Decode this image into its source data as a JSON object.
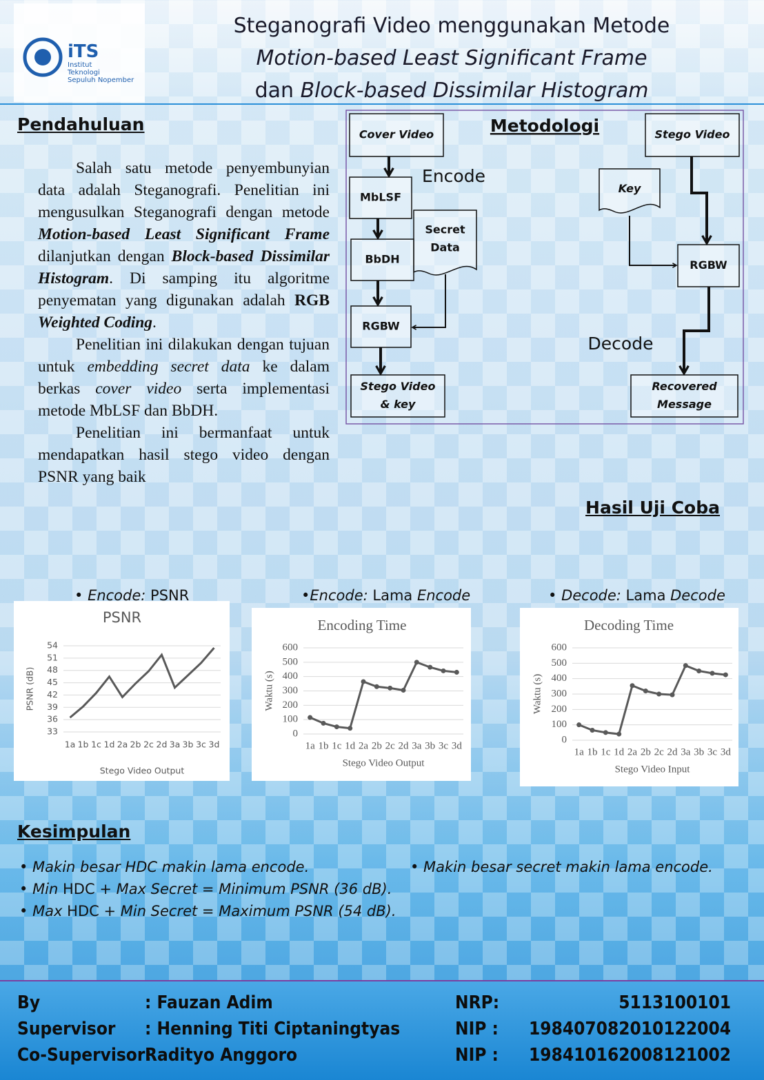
{
  "logo": {
    "mark": "iTS",
    "lines": [
      "Institut",
      "Teknologi",
      "Sepuluh Nopember"
    ]
  },
  "title": {
    "lines": [
      [
        {
          "text": "Steganografi Video menggunakan Metode"
        }
      ],
      [
        {
          "text": "Motion-based Least Significant Frame",
          "style": "i"
        }
      ],
      [
        {
          "text": "dan "
        },
        {
          "text": "Block-based Dissimilar Histogram",
          "style": "i"
        }
      ]
    ]
  },
  "intro": {
    "heading": "Pendahuluan",
    "paragraphs": [
      [
        {
          "text": "Salah satu metode penyembunyian data adalah Steganografi. Penelitian ini mengusulkan Steganografi dengan metode "
        },
        {
          "text": "Motion-based Least Significant Frame",
          "style": "bi"
        },
        {
          "text": " dilanjutkan dengan "
        },
        {
          "text": "Block-based Dissimilar Histogram",
          "style": "bi"
        },
        {
          "text": ". Di samping itu algoritme penyematan yang digunakan adalah "
        },
        {
          "text": "RGB ",
          "style": "b"
        },
        {
          "text": "Weighted Coding",
          "style": "bi"
        },
        {
          "text": "."
        }
      ],
      [
        {
          "text": "Penelitian ini dilakukan dengan tujuan untuk "
        },
        {
          "text": "embedding secret data",
          "style": "i"
        },
        {
          "text": " ke dalam berkas "
        },
        {
          "text": "cover video",
          "style": "i"
        },
        {
          "text": " serta implementasi metode MbLSF dan BbDH."
        }
      ],
      [
        {
          "text": "Penelitian ini bermanfaat untuk mendapatkan hasil stego video dengan PSNR yang baik"
        }
      ]
    ]
  },
  "method": {
    "heading": "Metodologi",
    "encode_label": "Encode",
    "decode_label": "Decode",
    "nodes": [
      {
        "lines": [
          "Cover Video"
        ]
      },
      {
        "lines": [
          "MbLSF"
        ]
      },
      {
        "lines": [
          "Secret",
          "Data"
        ]
      },
      {
        "lines": [
          "BbDH"
        ]
      },
      {
        "lines": [
          "RGBW"
        ]
      },
      {
        "lines": [
          "Stego Video",
          "& key"
        ]
      },
      {
        "lines": [
          "Stego Video"
        ]
      },
      {
        "lines": [
          "Key"
        ]
      },
      {
        "lines": [
          "RGBW"
        ]
      },
      {
        "lines": [
          "Recovered",
          "Message"
        ]
      }
    ]
  },
  "results": {
    "heading": "Hasil Uji Coba",
    "captions": [
      [
        {
          "text": "• "
        },
        {
          "text": "Encode:",
          "style": "i"
        },
        {
          "text": " PSNR"
        }
      ],
      [
        {
          "text": "•"
        },
        {
          "text": "Encode:",
          "style": "i"
        },
        {
          "text": " Lama "
        },
        {
          "text": "Encode",
          "style": "i"
        }
      ],
      [
        {
          "text": "• "
        },
        {
          "text": "Decode:",
          "style": "i"
        },
        {
          "text": " Lama "
        },
        {
          "text": "Decode",
          "style": "i"
        }
      ]
    ]
  },
  "charts": [
    {
      "type": "line",
      "title": "PSNR",
      "y_label": "PSNR (dB)",
      "x_label": "Stego Video Output",
      "categories": [
        "1a",
        "1b",
        "1c",
        "1d",
        "2a",
        "2b",
        "2c",
        "2d",
        "3a",
        "3b",
        "3c",
        "3d"
      ],
      "values": [
        36.5,
        39.2,
        42.5,
        46.5,
        41.5,
        44.8,
        47.8,
        51.8,
        43.8,
        46.8,
        49.8,
        53.5
      ],
      "color": "#595959",
      "markers": false,
      "ylim": [
        33,
        54
      ],
      "yticks": [
        33,
        36,
        39,
        42,
        45,
        48,
        51,
        54
      ],
      "grid": true
    },
    {
      "type": "line",
      "title": "Encoding Time",
      "y_label": "Waktu (s)",
      "x_label": "Stego Video Output",
      "categories": [
        "1a",
        "1b",
        "1c",
        "1d",
        "2a",
        "2b",
        "2c",
        "2d",
        "3a",
        "3b",
        "3c",
        "3d"
      ],
      "values": [
        115,
        75,
        50,
        40,
        365,
        330,
        320,
        305,
        500,
        465,
        440,
        430
      ],
      "color": "#595959",
      "markers": true,
      "ylim": [
        0,
        600
      ],
      "yticks": [
        0,
        100,
        200,
        300,
        400,
        500,
        600
      ],
      "grid": true
    },
    {
      "type": "line",
      "title": "Decoding Time",
      "y_label": "Waktu (s)",
      "x_label": "Stego Video Input",
      "categories": [
        "1a",
        "1b",
        "1c",
        "1d",
        "2a",
        "2b",
        "2c",
        "2d",
        "3a",
        "3b",
        "3c",
        "3d"
      ],
      "values": [
        100,
        65,
        50,
        40,
        355,
        320,
        300,
        295,
        485,
        450,
        435,
        425
      ],
      "color": "#595959",
      "markers": true,
      "ylim": [
        0,
        600
      ],
      "yticks": [
        0,
        100,
        200,
        300,
        400,
        500,
        600
      ],
      "grid": true
    }
  ],
  "conclusion": {
    "heading": "Kesimpulan",
    "items": [
      [
        {
          "text": "• Makin besar HDC makin lama encode.",
          "style": "i"
        }
      ],
      [
        {
          "text": "• Makin besar secret makin lama encode.",
          "style": "i"
        }
      ],
      [
        {
          "text": "• "
        },
        {
          "text": "Min",
          "style": "i"
        },
        {
          "text": " HDC "
        },
        {
          "text": "+ Max Secret = Minimum PSNR (36 dB).",
          "style": "i"
        }
      ],
      [
        {
          "text": "• "
        },
        {
          "text": "Max",
          "style": "i"
        },
        {
          "text": " HDC "
        },
        {
          "text": "+ Min Secret = Maximum PSNR (54 dB).",
          "style": "i"
        }
      ]
    ]
  },
  "footer": {
    "rows": [
      [
        "By",
        ": Fauzan Adim",
        "NRP:",
        "5113100101"
      ],
      [
        "Supervisor",
        ": Henning Titi Ciptaningtyas",
        "NIP :",
        "198407082010122004"
      ],
      [
        "Co-Supervisor:",
        "Radityo Anggoro",
        "NIP :",
        "198410162008121002"
      ]
    ]
  }
}
